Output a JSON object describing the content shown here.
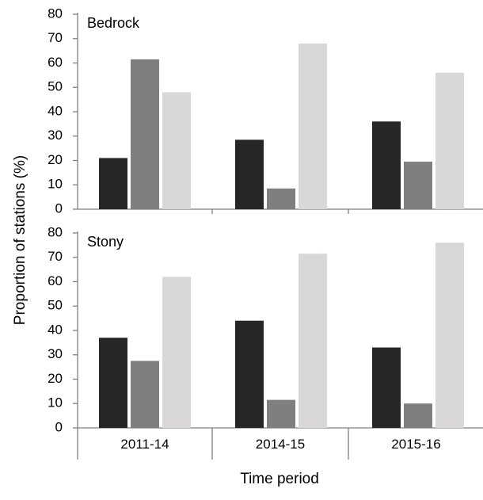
{
  "chart_data": [
    {
      "type": "bar",
      "panel_label": "Bedrock",
      "categories": [
        "2011-14",
        "2014-15",
        "2015-16"
      ],
      "series": [
        {
          "values": [
            21,
            28.5,
            36
          ],
          "color": "#262626"
        },
        {
          "values": [
            61.5,
            8.5,
            19.5
          ],
          "color": "#7f7f7f"
        },
        {
          "values": [
            48,
            68,
            56
          ],
          "color": "#d9d7d7"
        }
      ],
      "ylim": [
        0,
        80
      ],
      "yticks": [
        0,
        10,
        20,
        30,
        40,
        50,
        60,
        70,
        80
      ],
      "grid": false
    },
    {
      "type": "bar",
      "panel_label": "Stony",
      "categories": [
        "2011-14",
        "2014-15",
        "2015-16"
      ],
      "series": [
        {
          "values": [
            37,
            44,
            33
          ],
          "color": "#262626"
        },
        {
          "values": [
            27.5,
            11.5,
            10
          ],
          "color": "#7f7f7f"
        },
        {
          "values": [
            62,
            71.5,
            76
          ],
          "color": "#d9d7d7"
        }
      ],
      "ylim": [
        0,
        80
      ],
      "yticks": [
        0,
        10,
        20,
        30,
        40,
        50,
        60,
        70,
        80
      ],
      "grid": false
    }
  ],
  "shared": {
    "ylabel": "Proportion of stations (%)",
    "xlabel": "Time period",
    "x_tick_labels": [
      "2011-14",
      "2014-15",
      "2015-16"
    ]
  }
}
